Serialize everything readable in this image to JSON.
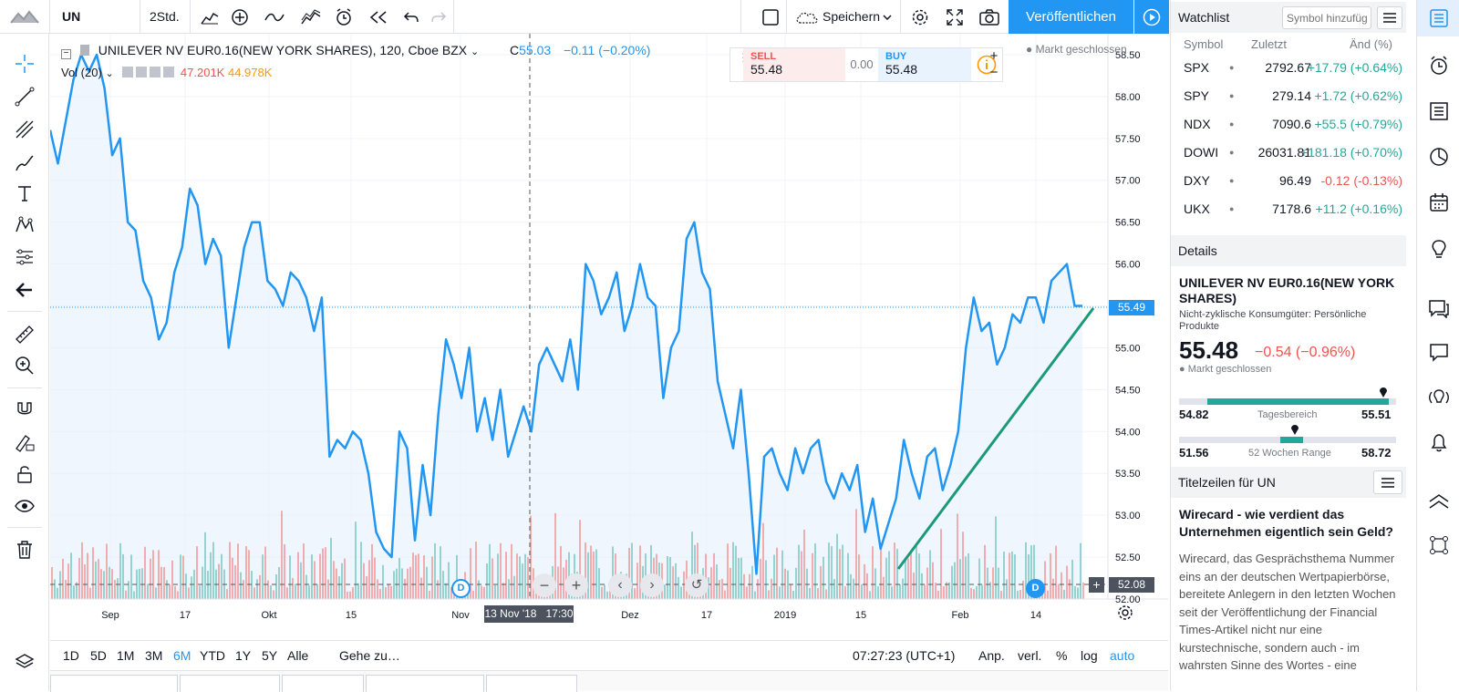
{
  "topbar": {
    "symbol": "UN",
    "interval": "2Std.",
    "save_label": "Speichern",
    "publish_label": "Veröffentlichen"
  },
  "legend": {
    "title": "UNILEVER NV EUR0.16(NEW YORK SHARES), 120, Cboe BZX",
    "close_prefix": "C",
    "close_value": "55.03",
    "change": "−0.11 (−0.20%)",
    "vol_label": "Vol (20)",
    "vol1": "47.201K",
    "vol2": "44.978K"
  },
  "trade": {
    "sell_label": "SELL",
    "sell_price": "55.48",
    "spread": "0.00",
    "buy_label": "BUY",
    "buy_price": "55.48",
    "market_status": "Markt geschlossen"
  },
  "chart_data": {
    "type": "line",
    "title": "UNILEVER NV EUR0.16(NEW YORK SHARES), 120, Cboe BZX",
    "ylim": [
      52.0,
      58.75
    ],
    "y_ticks": [
      "58.50",
      "58.00",
      "57.50",
      "57.00",
      "56.50",
      "56.00",
      "55.50",
      "55.00",
      "54.50",
      "54.00",
      "53.50",
      "53.00",
      "52.50",
      "52.00"
    ],
    "x_ticks": [
      "Sep",
      "17",
      "Okt",
      "15",
      "Nov",
      "Dez",
      "17",
      "2019",
      "15",
      "Feb",
      "14"
    ],
    "crosshair_label": "13 Nov '18   17:30",
    "last_price_label": "55.49",
    "crosshair_price_label": "52.08",
    "dividend_marker": "D",
    "y": [
      57.6,
      57.2,
      57.7,
      58.2,
      58.5,
      58.3,
      58.5,
      58.1,
      57.3,
      57.5,
      56.5,
      56.4,
      55.8,
      55.6,
      55.1,
      55.3,
      55.9,
      56.2,
      56.9,
      56.7,
      56.0,
      56.3,
      56.1,
      55.0,
      55.6,
      56.2,
      56.5,
      56.5,
      55.8,
      55.7,
      55.5,
      55.9,
      55.8,
      55.6,
      55.2,
      55.6,
      53.7,
      53.9,
      53.8,
      54.0,
      53.9,
      53.5,
      52.8,
      52.6,
      52.5,
      54.0,
      53.8,
      52.7,
      53.6,
      53.0,
      54.2,
      55.1,
      54.8,
      54.4,
      55.0,
      54.0,
      54.4,
      53.9,
      54.5,
      53.7,
      54.0,
      54.3,
      54.0,
      54.8,
      55.0,
      54.8,
      54.6,
      55.1,
      54.5,
      56.0,
      55.8,
      55.4,
      55.6,
      55.9,
      55.2,
      55.5,
      56.0,
      55.6,
      55.5,
      54.4,
      55.0,
      55.2,
      56.3,
      56.5,
      55.9,
      55.7,
      54.6,
      54.2,
      53.8,
      54.5,
      53.5,
      52.3,
      53.7,
      53.8,
      53.5,
      53.3,
      53.8,
      53.5,
      53.8,
      53.9,
      53.4,
      53.2,
      53.5,
      53.3,
      53.6,
      52.8,
      53.2,
      52.6,
      52.9,
      53.2,
      53.9,
      53.5,
      53.2,
      53.7,
      53.8,
      53.3,
      53.6,
      54.0,
      55.0,
      55.6,
      55.2,
      55.3,
      54.8,
      55.0,
      55.4,
      55.3,
      55.6,
      55.6,
      55.3,
      55.8,
      55.9,
      56.0,
      55.5,
      55.5
    ],
    "trendline_label": "",
    "volume_bars": "mixed up/down volume histogram"
  },
  "bottombar": {
    "ranges": [
      "1D",
      "5D",
      "1M",
      "3M",
      "6M",
      "YTD",
      "1Y",
      "5Y",
      "Alle"
    ],
    "active_range": "6M",
    "goto_label": "Gehe zu…",
    "time": "07:27:23 (UTC+1)",
    "adj_label": "Anp.",
    "ext_label": "verl.",
    "pct_label": "%",
    "log_label": "log",
    "auto_label": "auto"
  },
  "watchlist": {
    "title": "Watchlist",
    "add_placeholder": "Symbol hinzufüg",
    "col_symbol": "Symbol",
    "col_last": "Zuletzt",
    "col_change": "Änd (%)",
    "rows": [
      {
        "symbol": "SPX",
        "last": "2792.67",
        "change": "+17.79 (+0.64%)",
        "dir": "up"
      },
      {
        "symbol": "SPY",
        "last": "279.14",
        "change": "+1.72 (+0.62%)",
        "dir": "up"
      },
      {
        "symbol": "NDX",
        "last": "7090.6",
        "change": "+55.5 (+0.79%)",
        "dir": "up"
      },
      {
        "symbol": "DOWI",
        "last": "26031.81",
        "change": "+181.18 (+0.70%)",
        "dir": "up"
      },
      {
        "symbol": "DXY",
        "last": "96.49",
        "change": "-0.12 (-0.13%)",
        "dir": "down"
      },
      {
        "symbol": "UKX",
        "last": "7178.6",
        "change": "+11.2 (+0.16%)",
        "dir": "up"
      }
    ]
  },
  "details": {
    "title": "Details",
    "name": "UNILEVER NV EUR0.16(NEW YORK SHARES)",
    "sector": "Nicht-zyklische Konsumgüter: Persönliche Produkte",
    "price": "55.48",
    "change": "−0.54 (−0.96%)",
    "status": "Markt geschlossen",
    "day_low": "54.82",
    "day_high": "55.51",
    "day_label": "Tagesbereich",
    "day_fill": 0.96,
    "wk_low": "51.56",
    "wk_high": "58.72",
    "wk_label": "52 Wochen Range",
    "wk_fill": 0.55
  },
  "headlines": {
    "title": "Titelzeilen für UN",
    "headline": "Wirecard - wie verdient das Unternehmen eigentlich sein Geld?",
    "body": "Wirecard, das Gesprächsthema Nummer eins an der deutschen Wertpapierbörse, bereitete Anlegern in den letzten Wochen seit der Veröffentlichung der Financial Times-Artikel nicht nur eine kurstechnische, sondern auch - im wahrsten Sinne des Wortes - eine"
  },
  "colors": {
    "accent": "#2196f3",
    "up": "#26a69a",
    "down": "#ef5350",
    "line": "#2196f3",
    "trend": "#1a9a78"
  }
}
